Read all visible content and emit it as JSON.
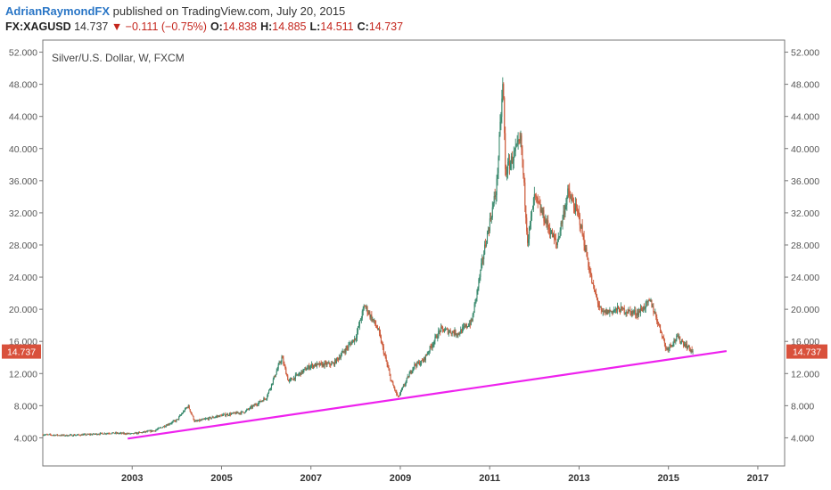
{
  "header": {
    "author": "AdrianRaymondFX",
    "published": " published on TradingView.com, July 20, 2015",
    "symbol": "FX:XAGUSD",
    "last": "14.737",
    "change": "▼ −0.111 (−0.75%)",
    "open_label": "O:",
    "open": "14.838",
    "high_label": "H:",
    "high": "14.885",
    "low_label": "L:",
    "low": "14.511",
    "close_label": "C:",
    "close": "14.737"
  },
  "chart_data": {
    "type": "candlestick",
    "title": "Silver/U.S. Dollar, W, FXCM",
    "x_ticks": [
      "2003",
      "2005",
      "2007",
      "2009",
      "2011",
      "2013",
      "2015",
      "2017"
    ],
    "y_ticks": [
      "52.000",
      "48.000",
      "44.000",
      "40.000",
      "36.000",
      "32.000",
      "28.000",
      "24.000",
      "20.000",
      "16.000",
      "12.000",
      "8.000",
      "4.000"
    ],
    "xlim": [
      2001.0,
      2017.6
    ],
    "ylim": [
      0.5,
      53.5
    ],
    "last_price_label": "14.737",
    "colors": {
      "up": "#3a8a6e",
      "down": "#cc5a3a",
      "trendline": "#ee22ee",
      "price_tag": "#d9513c"
    },
    "price_path": [
      [
        2001.0,
        4.4
      ],
      [
        2001.5,
        4.3
      ],
      [
        2002.0,
        4.4
      ],
      [
        2002.5,
        4.6
      ],
      [
        2003.0,
        4.5
      ],
      [
        2003.5,
        4.9
      ],
      [
        2004.0,
        6.2
      ],
      [
        2004.25,
        8.0
      ],
      [
        2004.4,
        6.0
      ],
      [
        2005.0,
        6.8
      ],
      [
        2005.5,
        7.2
      ],
      [
        2006.0,
        9.0
      ],
      [
        2006.35,
        14.0
      ],
      [
        2006.5,
        11.0
      ],
      [
        2007.0,
        13.0
      ],
      [
        2007.5,
        13.2
      ],
      [
        2008.0,
        16.5
      ],
      [
        2008.2,
        20.5
      ],
      [
        2008.5,
        17.5
      ],
      [
        2008.8,
        11.0
      ],
      [
        2008.95,
        9.0
      ],
      [
        2009.3,
        13.0
      ],
      [
        2009.5,
        13.5
      ],
      [
        2009.9,
        17.5
      ],
      [
        2010.3,
        17.0
      ],
      [
        2010.6,
        18.5
      ],
      [
        2010.9,
        28.0
      ],
      [
        2011.15,
        35.0
      ],
      [
        2011.3,
        48.5
      ],
      [
        2011.35,
        37.0
      ],
      [
        2011.7,
        41.0
      ],
      [
        2011.85,
        28.5
      ],
      [
        2012.0,
        34.0
      ],
      [
        2012.5,
        28.0
      ],
      [
        2012.75,
        34.5
      ],
      [
        2013.0,
        31.5
      ],
      [
        2013.3,
        23.0
      ],
      [
        2013.5,
        19.5
      ],
      [
        2013.9,
        20.0
      ],
      [
        2014.3,
        19.5
      ],
      [
        2014.6,
        21.0
      ],
      [
        2014.85,
        17.0
      ],
      [
        2014.95,
        15.0
      ],
      [
        2015.2,
        16.5
      ],
      [
        2015.55,
        14.7
      ]
    ],
    "trendline": {
      "x": [
        2002.9,
        2016.3
      ],
      "y": [
        3.9,
        14.8
      ]
    }
  }
}
